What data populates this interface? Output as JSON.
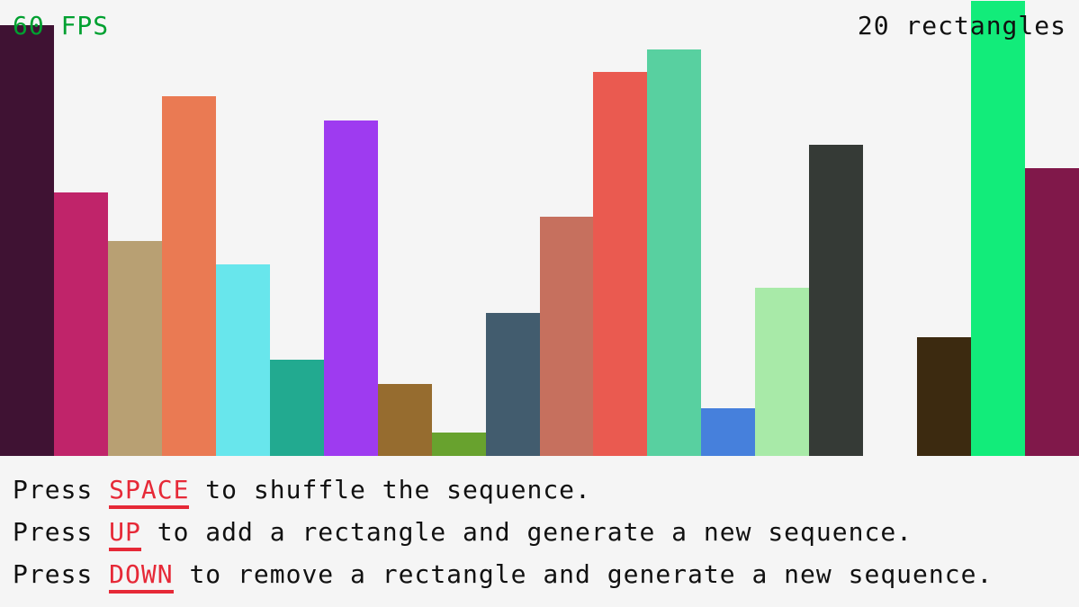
{
  "hud": {
    "fps": "60 FPS",
    "count": "20 rectangles"
  },
  "instructions": [
    {
      "pre": "Press ",
      "key": "SPACE",
      "post": " to shuffle the sequence."
    },
    {
      "pre": "Press ",
      "key": "UP",
      "post": " to add a rectangle and generate a new sequence."
    },
    {
      "pre": "Press ",
      "key": "DOWN",
      "post": " to remove a rectangle and generate a new sequence."
    }
  ],
  "colors": {
    "background": "#f5f5f5",
    "key": "#e62937",
    "fps": "#00a030"
  },
  "bars": [
    {
      "value": 479,
      "color": "#3f1233"
    },
    {
      "value": 293,
      "color": "#c0246a"
    },
    {
      "value": 239,
      "color": "#b8a073"
    },
    {
      "value": 400,
      "color": "#ea7a53"
    },
    {
      "value": 213,
      "color": "#68e6ec"
    },
    {
      "value": 107,
      "color": "#22aa90"
    },
    {
      "value": 373,
      "color": "#9e3bf0"
    },
    {
      "value": 80,
      "color": "#966c2f"
    },
    {
      "value": 26,
      "color": "#68a22e"
    },
    {
      "value": 159,
      "color": "#425c6e"
    },
    {
      "value": 266,
      "color": "#c6705e"
    },
    {
      "value": 427,
      "color": "#ea5a50"
    },
    {
      "value": 452,
      "color": "#58d0a0"
    },
    {
      "value": 53,
      "color": "#4680dc"
    },
    {
      "value": 187,
      "color": "#a8eaa8"
    },
    {
      "value": 346,
      "color": "#353a36"
    },
    {
      "value": 0,
      "color": "#f5f5f5"
    },
    {
      "value": 132,
      "color": "#3c2a10"
    },
    {
      "value": 506,
      "color": "#12ec7a"
    },
    {
      "value": 320,
      "color": "#80184a"
    }
  ]
}
